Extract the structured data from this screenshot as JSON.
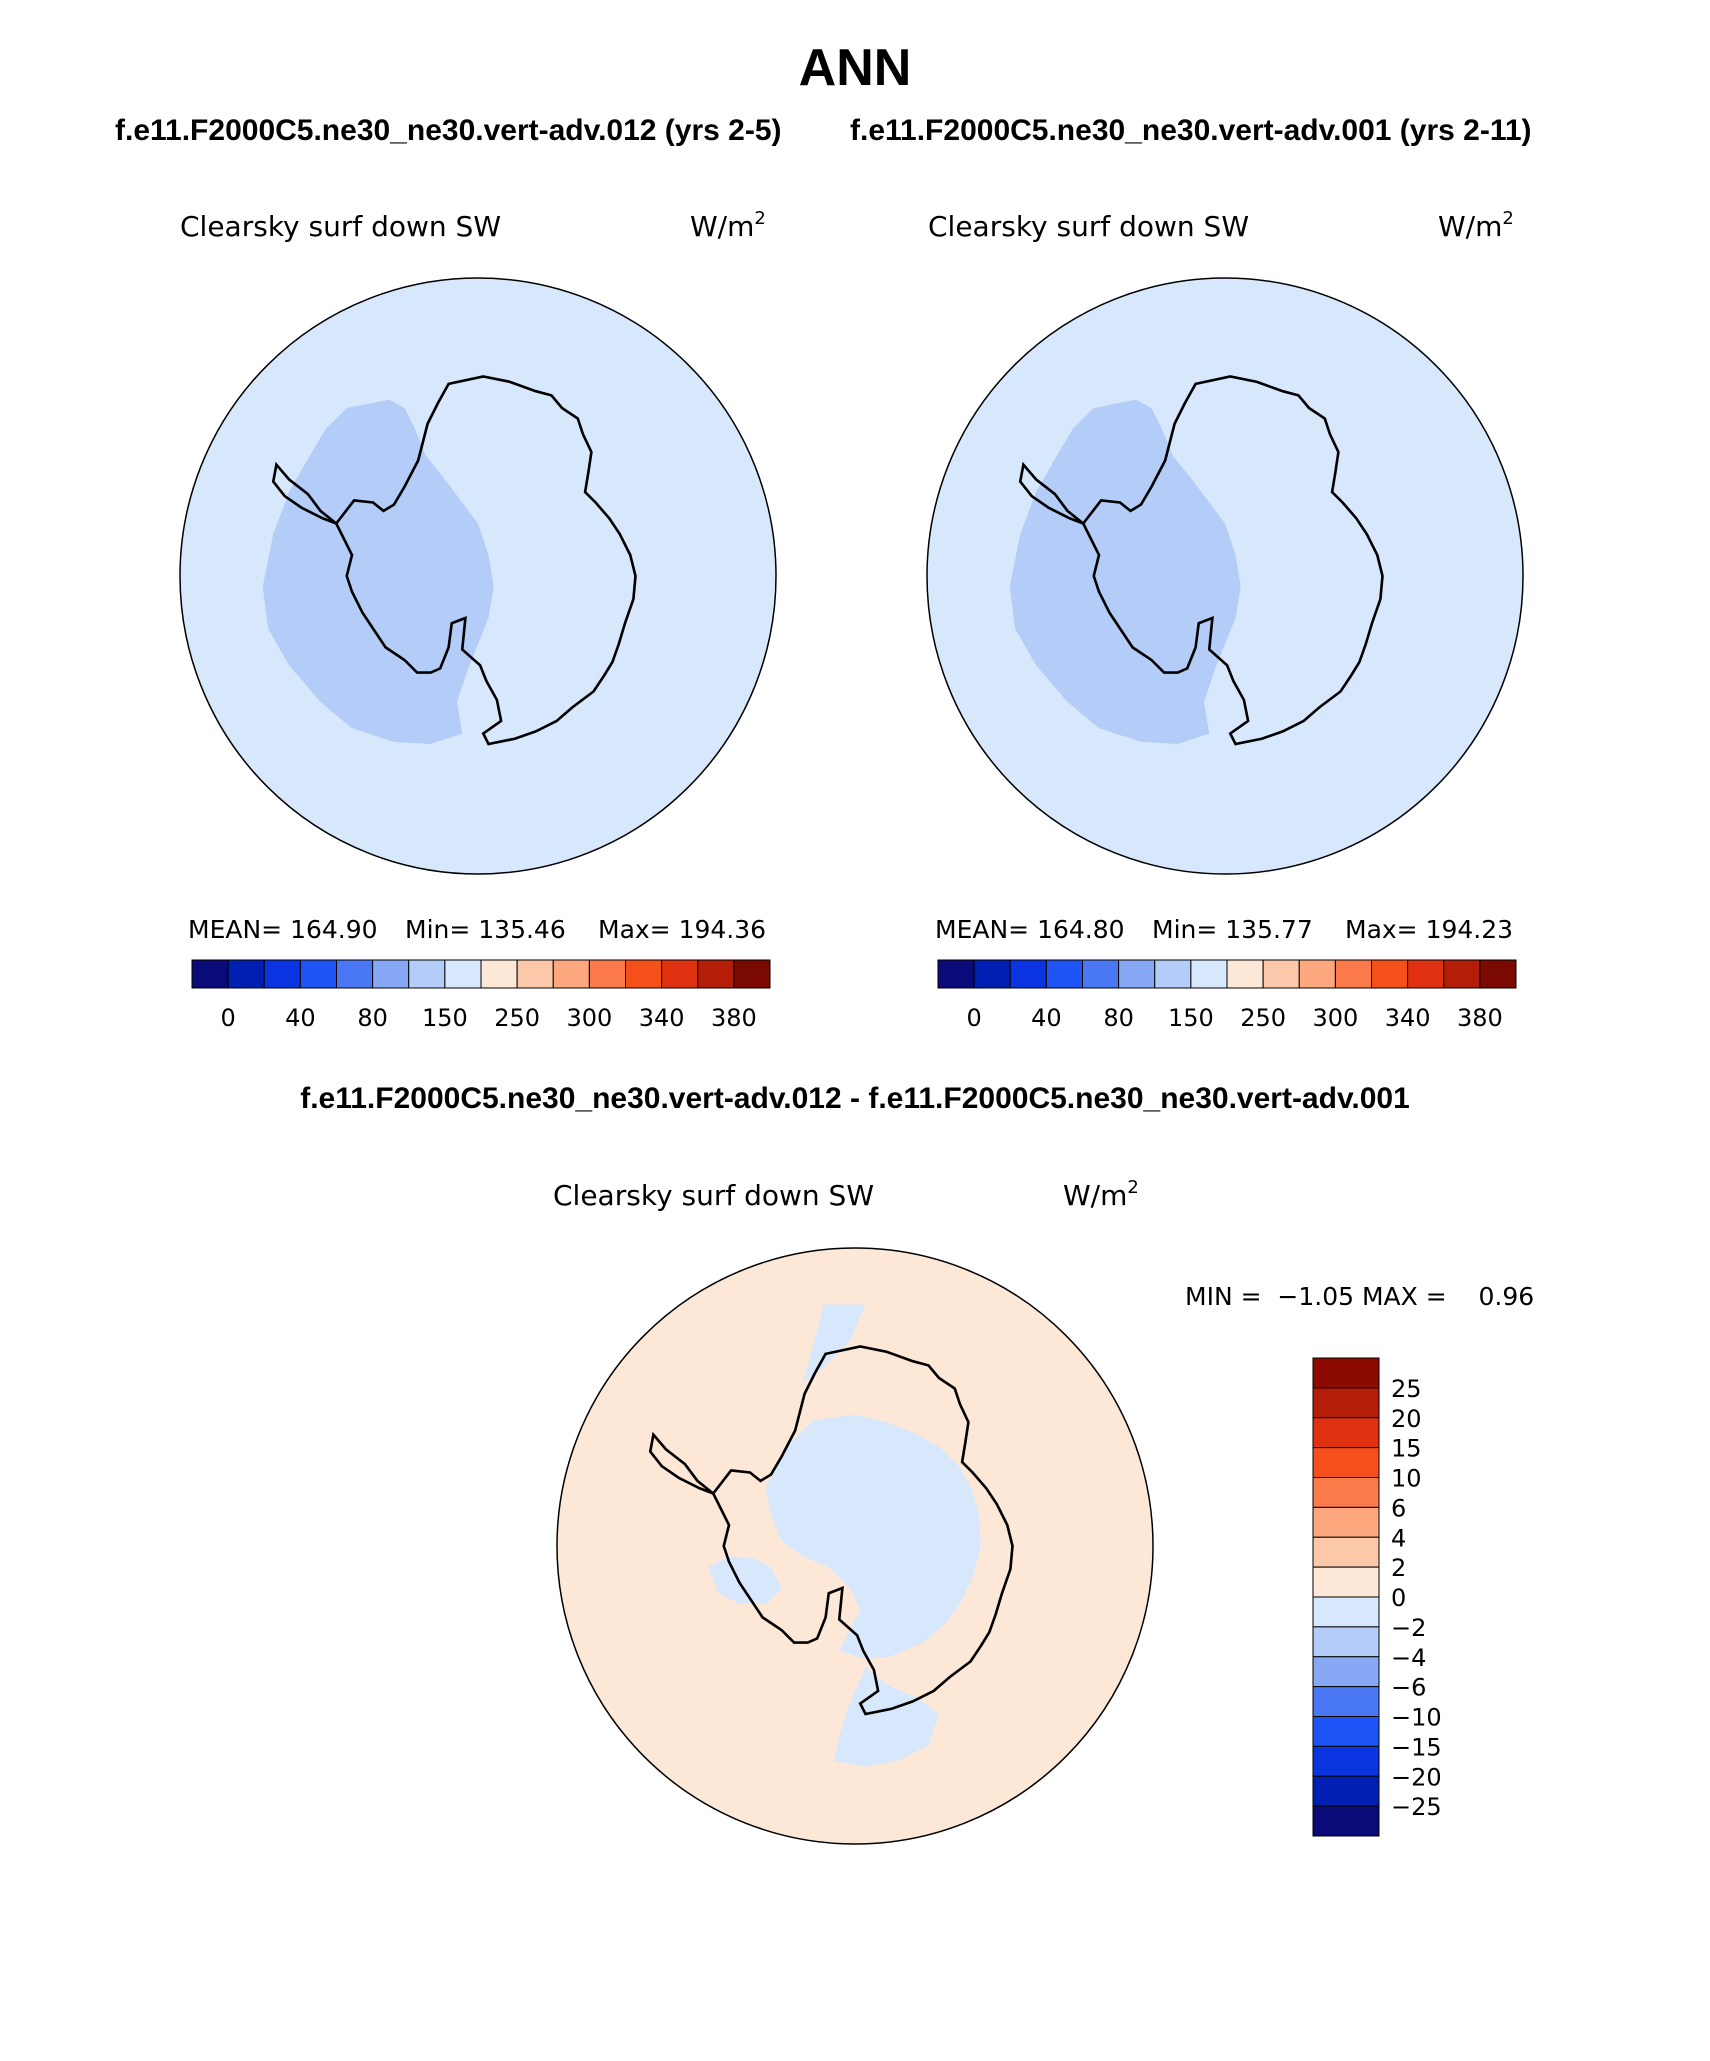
{
  "title": "ANN",
  "case1_header": "f.e11.F2000C5.ne30_ne30.vert-adv.012 (yrs 2-5)",
  "case2_header": "f.e11.F2000C5.ne30_ne30.vert-adv.001 (yrs 2-11)",
  "diff_header": "f.e11.F2000C5.ne30_ne30.vert-adv.012 - f.e11.F2000C5.ne30_ne30.vert-adv.001",
  "panels": [
    {
      "variable": "Clearsky surf down SW",
      "units_base": "W/m",
      "units_sup": "2",
      "stats": {
        "mean": "MEAN= 164.90",
        "min": "Min= 135.46",
        "max": "Max= 194.36"
      }
    },
    {
      "variable": "Clearsky surf down SW",
      "units_base": "W/m",
      "units_sup": "2",
      "stats": {
        "mean": "MEAN= 164.80",
        "min": "Min= 135.77",
        "max": "Max= 194.23"
      }
    }
  ],
  "diff_panel": {
    "variable": "Clearsky surf down SW",
    "units_base": "W/m",
    "units_sup": "2",
    "minmax": "MIN =  −1.05 MAX =    0.96"
  },
  "colorbar_h": {
    "colors": [
      "#0a0a78",
      "#0020b4",
      "#0a34e0",
      "#1e54f5",
      "#4a78f5",
      "#86a8f5",
      "#b4ccf8",
      "#d8e8fc",
      "#fde8d8",
      "#fcc8aa",
      "#fca77e",
      "#fa7a4a",
      "#f5501c",
      "#e03210",
      "#b41e08",
      "#7a0a00"
    ],
    "labels": [
      "0",
      "40",
      "80",
      "150",
      "250",
      "300",
      "340",
      "380"
    ]
  },
  "colorbar_v": {
    "colors_top_to_bottom": [
      "#8c0a00",
      "#b41e08",
      "#e03210",
      "#f5501c",
      "#fa7a4a",
      "#fca77e",
      "#fcc8aa",
      "#fde8d8",
      "#d8e8fc",
      "#b4ccf8",
      "#86a8f5",
      "#4a78f5",
      "#1e54f5",
      "#0a34e0",
      "#0020b4",
      "#0a0a78"
    ],
    "labels": [
      "25",
      "20",
      "15",
      "10",
      "6",
      "4",
      "2",
      "0",
      "−2",
      "−4",
      "−6",
      "−10",
      "−15",
      "−20",
      "−25"
    ]
  },
  "map_colors": {
    "ocean_light_blue": "#d8e8fc",
    "interior_blue": "#b4ccf8",
    "diff_orange": "#fde8d8",
    "diff_blue": "#d8e8fc"
  }
}
